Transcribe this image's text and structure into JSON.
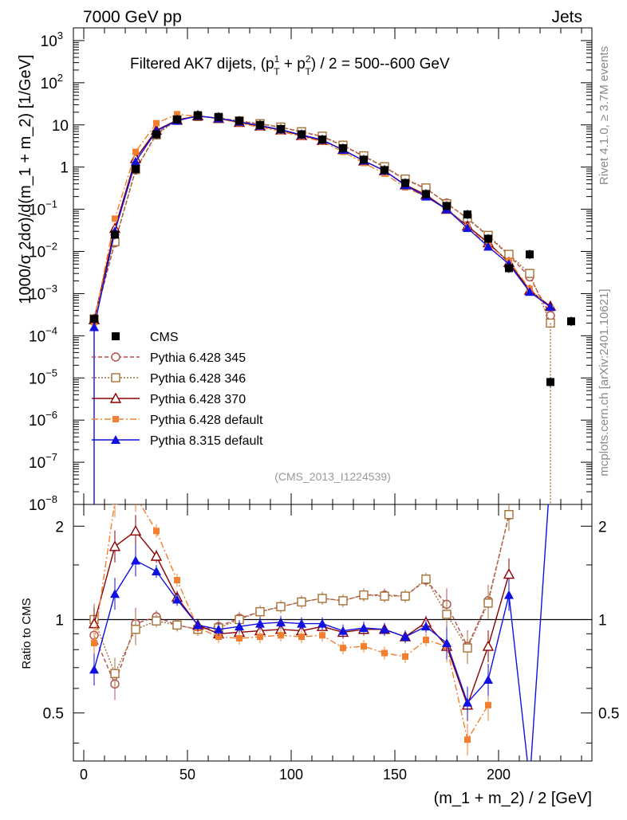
{
  "header": {
    "left": "7000 GeV pp",
    "right": "Jets"
  },
  "side_labels": {
    "top": "Rivet 4.1.0, ≥ 3.7M events",
    "bottom": "mcplots.cern.ch [arXiv:2401.10621]"
  },
  "colors": {
    "cms": "#000000",
    "p345": "#b44c4c",
    "p346": "#a87035",
    "p370": "#8b0000",
    "p6def": "#f28030",
    "p8def": "#1010e0"
  },
  "chart_data": {
    "type": "line",
    "title_main": "Filtered AK7 dijets, (p",
    "title_tail": ") / 2 = 500--600 GeV",
    "title_plus": " + p",
    "title_sub": "T",
    "title_sup1": "1",
    "title_sup2": "2",
    "ylabel_main": "1000/σ   2dσ)/d(m_1 + m_2) [1/GeV]",
    "ylabel_ratio": "Ratio to CMS",
    "xlabel": "(m_1 + m_2) / 2 [GeV]",
    "analysis": "(CMS_2013_I1224539)",
    "xlim": [
      -5,
      245
    ],
    "ylim_main": [
      1e-08,
      2000
    ],
    "ylim_ratio": [
      0.35,
      2.35
    ],
    "x_ticks": [
      "0",
      "50",
      "100",
      "150",
      "200"
    ],
    "x_tick_values": [
      0,
      50,
      100,
      150,
      200
    ],
    "y_ticks_main": [
      {
        "b": "10",
        "e": "3",
        "v": 1000
      },
      {
        "b": "10",
        "e": "2",
        "v": 100
      },
      {
        "b": "10",
        "e": "",
        "v": 10
      },
      {
        "b": "1",
        "e": "",
        "v": 1
      },
      {
        "b": "10",
        "e": "−1",
        "v": 0.1
      },
      {
        "b": "10",
        "e": "−2",
        "v": 0.01
      },
      {
        "b": "10",
        "e": "−3",
        "v": 0.001
      },
      {
        "b": "10",
        "e": "−4",
        "v": 0.0001
      },
      {
        "b": "10",
        "e": "−5",
        "v": 1e-05
      },
      {
        "b": "10",
        "e": "−6",
        "v": 1e-06
      },
      {
        "b": "10",
        "e": "−7",
        "v": 1e-07
      },
      {
        "b": "10",
        "e": "−8",
        "v": 1e-08
      }
    ],
    "y_ticks_ratio": [
      {
        "label": "2",
        "v": 2
      },
      {
        "label": "1",
        "v": 1
      },
      {
        "label": "0.5",
        "v": 0.5
      }
    ],
    "x": [
      5,
      15,
      25,
      35,
      45,
      55,
      65,
      75,
      85,
      95,
      105,
      115,
      125,
      135,
      145,
      155,
      165,
      175,
      185,
      195,
      205,
      215,
      225,
      235
    ],
    "cms": [
      0.00025,
      0.025,
      0.9,
      6.0,
      13.5,
      17,
      15.5,
      12.5,
      10,
      8,
      6,
      4.5,
      2.8,
      1.5,
      0.85,
      0.42,
      0.23,
      0.12,
      0.075,
      0.02,
      0.004,
      0.0085,
      8e-06,
      0.00022
    ],
    "series": [
      {
        "name": "Pythia 6.428 345",
        "key": "p345",
        "marker": "circle-open",
        "dash": "5,3",
        "main": [
          0.00022,
          0.016,
          0.85,
          6.2,
          13.5,
          16,
          14.7,
          12.3,
          10.5,
          8.8,
          6.8,
          5.3,
          3.2,
          1.8,
          1.0,
          0.5,
          0.31,
          0.14,
          0.06,
          0.023,
          0.008,
          0.0025,
          0.0003
        ],
        "ratio": [
          0.89,
          0.62,
          0.97,
          1.02,
          0.96,
          0.93,
          0.95,
          1.01,
          1.06,
          1.1,
          1.14,
          1.17,
          1.15,
          1.2,
          1.2,
          1.19,
          1.34,
          1.12,
          0.82,
          1.15,
          2.17
        ]
      },
      {
        "name": "Pythia 6.428 346",
        "key": "p346",
        "marker": "square-open",
        "dash": "2,2",
        "main": [
          0.00025,
          0.017,
          0.88,
          5.8,
          13.2,
          15.8,
          14.6,
          12.5,
          10.7,
          8.9,
          6.9,
          5.4,
          3.3,
          1.85,
          1.02,
          0.52,
          0.32,
          0.135,
          0.062,
          0.024,
          0.0085,
          0.003,
          0.0002
        ],
        "ratio": [
          1.0,
          0.67,
          0.93,
          0.99,
          0.96,
          0.93,
          0.94,
          1.0,
          1.06,
          1.1,
          1.14,
          1.17,
          1.15,
          1.2,
          1.19,
          1.19,
          1.35,
          1.04,
          0.81,
          1.13,
          2.18
        ]
      },
      {
        "name": "Pythia 6.428 370",
        "key": "p370",
        "marker": "triangle-open",
        "dash": "",
        "main": [
          0.00024,
          0.035,
          1.6,
          7.5,
          13,
          16.5,
          14.2,
          11.5,
          9.4,
          7.6,
          5.6,
          4.3,
          2.6,
          1.4,
          0.82,
          0.38,
          0.22,
          0.1,
          0.04,
          0.016,
          0.0055,
          0.0012,
          0.0005
        ],
        "ratio": [
          0.97,
          1.72,
          1.93,
          1.6,
          1.18,
          0.96,
          0.9,
          0.91,
          0.92,
          0.93,
          0.92,
          0.95,
          0.91,
          0.93,
          0.93,
          0.88,
          0.98,
          0.82,
          0.53,
          0.82,
          1.4
        ]
      },
      {
        "name": "Pythia 6.428 default",
        "key": "p6def",
        "marker": "square",
        "dash": "8,3,2,3",
        "main": [
          0.00021,
          0.06,
          2.3,
          11,
          18,
          16,
          14.2,
          11,
          8.8,
          7.1,
          5.3,
          4.0,
          2.3,
          1.25,
          0.7,
          0.33,
          0.2,
          0.1,
          0.038,
          0.014,
          0.006,
          0.0013,
          0.00045
        ],
        "ratio": [
          0.84,
          2.4,
          2.5,
          1.93,
          1.34,
          0.94,
          0.88,
          0.87,
          0.88,
          0.89,
          0.88,
          0.89,
          0.81,
          0.82,
          0.78,
          0.76,
          0.86,
          0.82,
          0.41,
          0.53
        ]
      },
      {
        "name": "Pythia 8.315 default",
        "key": "p8def",
        "marker": "triangle",
        "dash": "",
        "main": [
          0.00016,
          0.03,
          1.35,
          7.2,
          12.5,
          16.3,
          14.3,
          11.9,
          9.6,
          7.8,
          5.8,
          4.4,
          2.55,
          1.42,
          0.82,
          0.37,
          0.2,
          0.1,
          0.036,
          0.013,
          0.005,
          0.0011,
          0.00048
        ],
        "ratio": [
          0.69,
          1.21,
          1.55,
          1.43,
          1.16,
          0.96,
          0.93,
          0.95,
          0.97,
          0.98,
          0.97,
          0.97,
          0.92,
          0.94,
          0.93,
          0.88,
          0.95,
          0.84,
          0.54,
          0.64,
          1.2,
          0.3,
          3.0
        ]
      }
    ]
  }
}
